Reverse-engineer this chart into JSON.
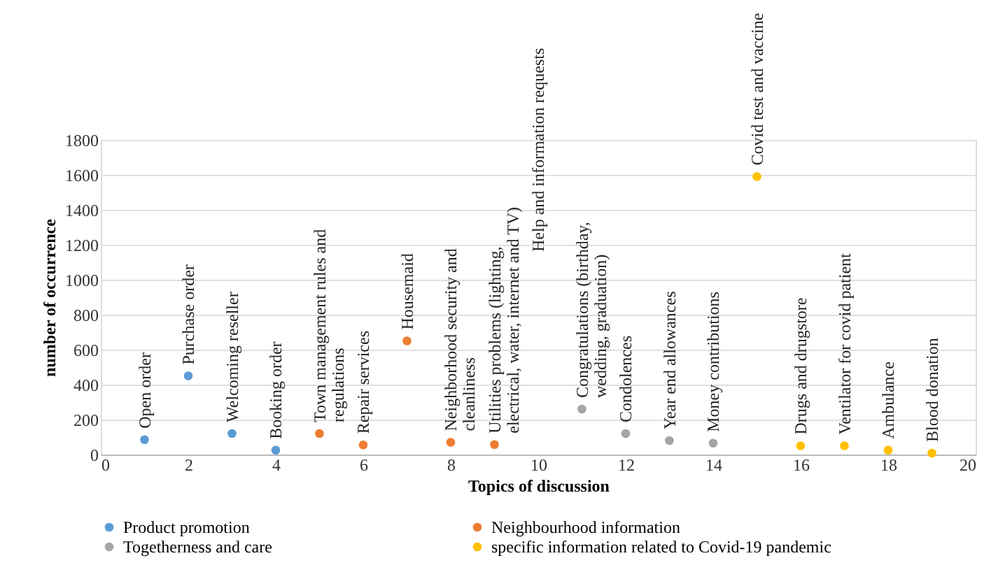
{
  "chart_data": {
    "type": "scatter",
    "xlabel": "Topics of discussion",
    "ylabel": "number of occurrence",
    "xlim": [
      0,
      20
    ],
    "xticks": [
      0,
      2,
      4,
      6,
      8,
      10,
      12,
      14,
      16,
      18,
      20
    ],
    "ylim": [
      0,
      1800
    ],
    "yticks": [
      0,
      200,
      400,
      600,
      800,
      1000,
      1200,
      1400,
      1600,
      1800
    ],
    "grid": "y",
    "legend": "bottom",
    "marker": "circle",
    "series": [
      {
        "name": "Product promotion",
        "color": "#5b9bd5",
        "x": [
          1,
          2,
          3,
          4
        ],
        "values": [
          85,
          450,
          120,
          25
        ]
      },
      {
        "name": "Neighbourhood information",
        "color": "#ed7d31",
        "x": [
          5,
          6,
          7,
          8,
          9
        ],
        "values": [
          120,
          55,
          650,
          70,
          57
        ]
      },
      {
        "name": "Togetherness and care",
        "color": "#a5a5a5",
        "x": [
          11,
          12,
          13,
          14
        ],
        "values": [
          260,
          120,
          80,
          65
        ]
      },
      {
        "name": "specific information related to Covid-19 pandemic",
        "color": "#ffc000",
        "x": [
          15,
          16,
          17,
          18,
          19
        ],
        "values": [
          1590,
          50,
          50,
          25,
          8
        ]
      }
    ],
    "annotations": [
      {
        "text": "Open order",
        "x": 1,
        "y": 85
      },
      {
        "text": "Purchase order",
        "x": 2,
        "y": 450
      },
      {
        "text": "Welcoming reseller",
        "x": 3,
        "y": 120
      },
      {
        "text": "Booking order",
        "x": 4,
        "y": 25
      },
      {
        "text": "Town management rules and\nregulations",
        "x": 5,
        "y": 120
      },
      {
        "text": "Repair services",
        "x": 6,
        "y": 55
      },
      {
        "text": "Housemaid",
        "x": 7,
        "y": 650
      },
      {
        "text": "Neighborhood security and\ncleanliness",
        "x": 8,
        "y": 70
      },
      {
        "text": "Utilities problems (lighting,\nelectrical, water, internet and TV)",
        "x": 9,
        "y": 57
      },
      "Help and information requests",
      {
        "text": "Congratulations (birthday,\nwedding, graduation)",
        "x": 11,
        "y": 260
      },
      {
        "text": "Condolences",
        "x": 12,
        "y": 120
      },
      {
        "text": "Year end allowances",
        "x": 13,
        "y": 80
      },
      {
        "text": "Money contributions",
        "x": 14,
        "y": 65
      },
      {
        "text": "Covid test and vaccine",
        "x": 15,
        "y": 1590
      },
      {
        "text": "Drugs and drugstore",
        "x": 16,
        "y": 50
      },
      {
        "text": "Ventilator for covid patient",
        "x": 17,
        "y": 50
      },
      {
        "text": "Ambulance",
        "x": 18,
        "y": 25
      },
      {
        "text": "Blood donation",
        "x": 19,
        "y": 8
      }
    ]
  }
}
